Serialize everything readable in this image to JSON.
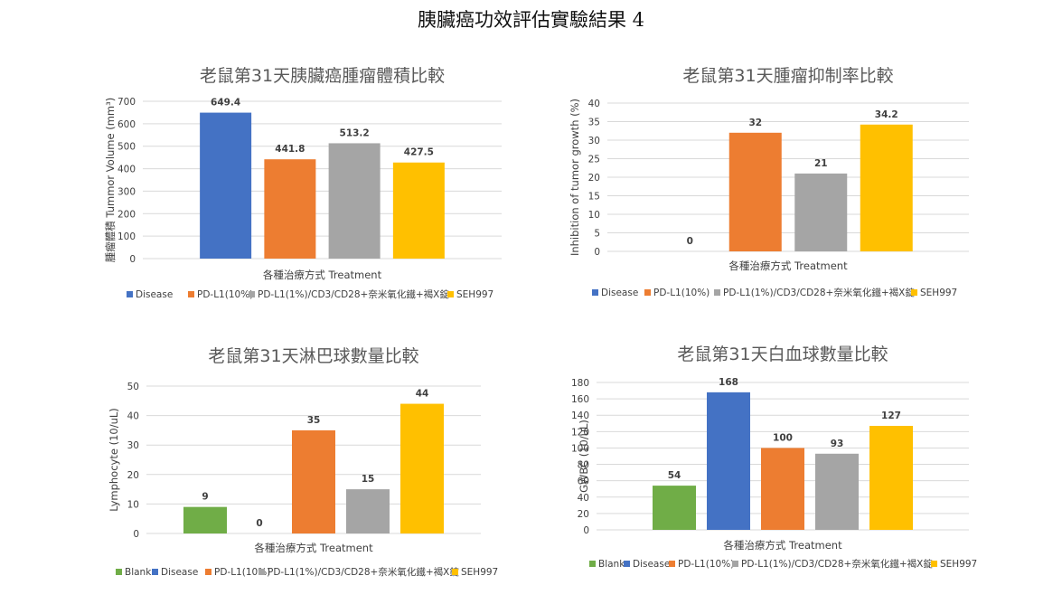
{
  "page_title": "胰臟癌功效評估實驗結果 4",
  "colors": {
    "blank": "#70AD47",
    "disease": "#4472C4",
    "pdl1": "#ED7D31",
    "combo": "#A5A5A5",
    "seh997": "#FFC000",
    "grid": "#D9D9D9"
  },
  "chart_data": [
    {
      "type": "bar",
      "title": "老鼠第31天胰臟癌腫瘤體積比較",
      "xlabel": "各種治療方式 Treatment",
      "ylabel": "腫瘤體積 Tummor Volume (mm³)",
      "ylim": [
        0,
        700
      ],
      "yticks": [
        0,
        100,
        200,
        300,
        400,
        500,
        600,
        700
      ],
      "grid": true,
      "legend_position": "bottom",
      "series": [
        {
          "name": "Disease",
          "value": 649.4,
          "label": "649.4",
          "color": "#4472C4"
        },
        {
          "name": "PD-L1(10%)",
          "value": 441.8,
          "label": "441.8",
          "color": "#ED7D31"
        },
        {
          "name": "PD-L1(1%)/CD3/CD28+奈米氧化鐵+褐X錠",
          "value": 513.2,
          "label": "513.2",
          "color": "#A5A5A5"
        },
        {
          "name": "SEH997",
          "value": 427.5,
          "label": "427.5",
          "color": "#FFC000"
        }
      ]
    },
    {
      "type": "bar",
      "title": "老鼠第31天腫瘤抑制率比較",
      "xlabel": "各種治療方式 Treatment",
      "ylabel": "Inhibition of tumor growth (%)",
      "ylim": [
        0,
        40
      ],
      "yticks": [
        0,
        5,
        10,
        15,
        20,
        25,
        30,
        35,
        40
      ],
      "grid": true,
      "legend_position": "bottom",
      "series": [
        {
          "name": "Disease",
          "value": 0,
          "label": "0",
          "color": "#4472C4"
        },
        {
          "name": "PD-L1(10%)",
          "value": 32,
          "label": "32",
          "color": "#ED7D31"
        },
        {
          "name": "PD-L1(1%)/CD3/CD28+奈米氧化鐵+褐X錠",
          "value": 21,
          "label": "21",
          "color": "#A5A5A5"
        },
        {
          "name": "SEH997",
          "value": 34.2,
          "label": "34.2",
          "color": "#FFC000"
        }
      ]
    },
    {
      "type": "bar",
      "title": "老鼠第31天淋巴球數量比較",
      "xlabel": "各種治療方式 Treatment",
      "ylabel": "Lymphocyte (10/uL)",
      "ylim": [
        0,
        50
      ],
      "yticks": [
        0,
        10,
        20,
        30,
        40,
        50
      ],
      "grid": true,
      "legend_position": "bottom",
      "series": [
        {
          "name": "Blank",
          "value": 9,
          "label": "9",
          "color": "#70AD47"
        },
        {
          "name": "Disease",
          "value": 0,
          "label": "0",
          "color": "#4472C4"
        },
        {
          "name": "PD-L1(10%)",
          "value": 35,
          "label": "35",
          "color": "#ED7D31"
        },
        {
          "name": "PD-L1(1%)/CD3/CD28+奈米氧化鐵+褐X錠",
          "value": 15,
          "label": "15",
          "color": "#A5A5A5"
        },
        {
          "name": "SEH997",
          "value": 44,
          "label": "44",
          "color": "#FFC000"
        }
      ]
    },
    {
      "type": "bar",
      "title": "老鼠第31天白血球數量比較",
      "xlabel": "各種治療方式 Treatment",
      "ylabel": "GWBC (10/uL)",
      "ylim": [
        0,
        180
      ],
      "yticks": [
        0,
        20,
        40,
        60,
        80,
        100,
        120,
        140,
        160,
        180
      ],
      "grid": true,
      "legend_position": "bottom",
      "series": [
        {
          "name": "Blank",
          "value": 54,
          "label": "54",
          "color": "#70AD47"
        },
        {
          "name": "Disease",
          "value": 168,
          "label": "168",
          "color": "#4472C4"
        },
        {
          "name": "PD-L1(10%)",
          "value": 100,
          "label": "100",
          "color": "#ED7D31"
        },
        {
          "name": "PD-L1(1%)/CD3/CD28+奈米氧化鐵+褐X錠",
          "value": 93,
          "label": "93",
          "color": "#A5A5A5"
        },
        {
          "name": "SEH997",
          "value": 127,
          "label": "127",
          "color": "#FFC000"
        }
      ]
    }
  ]
}
